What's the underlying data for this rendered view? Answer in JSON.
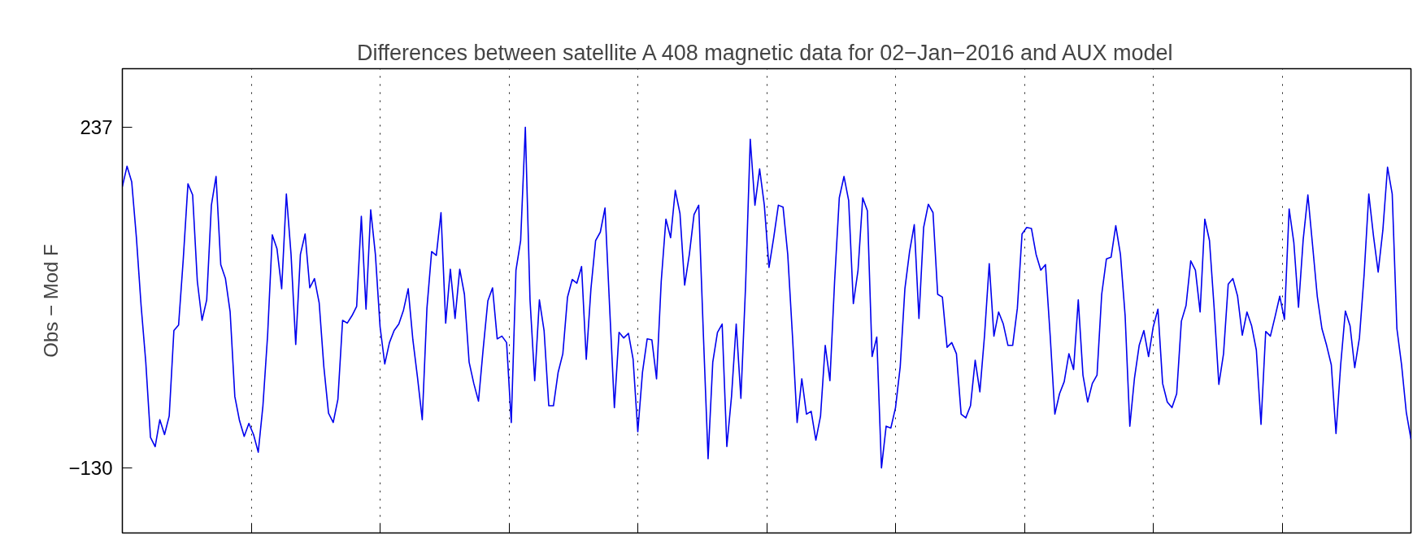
{
  "chart_data": {
    "type": "line",
    "title": "Differences between satellite A 408 magnetic data for 02−Jan−2016 and AUX model",
    "ylabel": "Obs − Mod F",
    "categories": [
      null,
      null,
      null,
      null,
      null,
      null,
      null,
      null,
      null,
      null,
      null,
      null,
      null,
      null,
      null,
      null,
      null,
      null,
      null,
      null,
      null,
      null,
      null,
      null,
      null,
      null,
      null,
      null,
      null,
      null,
      null,
      null,
      null,
      null,
      null,
      null,
      null,
      null,
      null,
      null,
      null,
      null,
      null,
      null,
      null,
      null,
      null,
      null,
      null,
      null,
      null,
      null,
      null,
      null,
      null,
      null,
      null,
      null,
      null,
      null,
      null,
      null,
      null,
      null,
      null,
      null,
      null,
      null,
      null,
      null,
      null,
      null,
      null,
      null,
      null,
      null,
      null,
      null,
      null,
      null,
      null,
      null,
      null,
      null,
      null,
      null,
      null,
      null,
      null,
      null,
      null,
      null,
      null,
      null,
      null,
      null,
      null,
      null,
      null,
      null,
      null,
      null,
      null,
      null,
      null,
      null,
      null,
      null,
      null,
      null,
      null,
      null,
      null,
      null,
      null,
      null,
      null,
      null,
      null,
      null,
      null,
      null,
      null,
      null,
      null,
      null,
      null,
      null,
      null,
      null,
      null,
      null,
      null,
      null,
      null,
      null,
      null,
      null,
      null,
      null,
      null,
      null,
      null,
      null,
      null,
      null,
      null,
      null,
      null,
      null,
      null,
      null,
      null,
      null,
      null,
      null,
      null,
      null,
      null,
      null,
      null,
      null,
      null,
      null,
      null,
      null,
      null,
      null,
      null,
      null,
      null,
      null,
      null,
      null,
      null,
      null,
      null,
      null,
      null,
      null,
      null,
      null,
      null,
      null,
      null,
      null,
      null,
      null,
      null,
      null,
      null,
      null,
      null,
      null,
      null,
      null,
      null,
      null,
      null,
      null,
      null,
      null,
      null,
      null,
      null,
      null,
      null,
      null,
      null,
      null,
      null,
      null,
      null,
      null,
      null,
      null,
      null,
      null,
      null,
      null,
      null,
      null,
      null,
      null,
      null,
      null,
      null,
      null,
      null,
      null,
      null,
      null,
      null,
      null,
      null,
      null,
      null,
      null,
      null,
      null,
      null,
      null,
      null,
      null,
      null,
      null,
      null,
      null,
      null,
      null,
      null,
      null,
      null,
      null,
      null,
      null,
      null,
      null,
      null,
      null,
      null,
      null,
      null,
      null,
      null,
      null,
      null,
      null,
      null,
      null,
      null,
      null,
      null,
      null,
      null,
      null
    ],
    "ylim": [
      -200,
      300
    ],
    "yticks": [
      {
        "value": -130,
        "label": "−130"
      },
      237
    ],
    "tick_labels": "y",
    "grid": "x",
    "line_style": "solid",
    "series": [
      {
        "color": "#0000ee",
        "values": [
          173,
          195,
          178,
          118,
          45,
          -16,
          -97,
          -107,
          -78,
          -94,
          -74,
          18,
          24,
          95,
          176,
          164,
          71,
          29,
          51,
          153,
          184,
          89,
          74,
          38,
          -53,
          -79,
          -96,
          -82,
          -94,
          -113,
          -63,
          13,
          121,
          106,
          63,
          165,
          100,
          3,
          100,
          122,
          64,
          74,
          48,
          -21,
          -71,
          -81,
          -56,
          29,
          26,
          34,
          44,
          141,
          41,
          148,
          100,
          22,
          -18,
          5,
          18,
          25,
          40,
          63,
          8,
          -33,
          -78,
          42,
          103,
          99,
          145,
          26,
          84,
          31,
          84,
          57,
          -16,
          -39,
          -58,
          -2,
          50,
          64,
          9,
          12,
          5,
          -81,
          83,
          115,
          237,
          51,
          -36,
          51,
          18,
          -63,
          -63,
          -27,
          -7,
          54,
          73,
          69,
          87,
          -13,
          63,
          115,
          124,
          150,
          42,
          -65,
          16,
          10,
          15,
          -13,
          -91,
          -27,
          9,
          8,
          -34,
          71,
          138,
          118,
          169,
          144,
          67,
          100,
          143,
          153,
          13,
          -120,
          -16,
          16,
          25,
          -107,
          -53,
          25,
          -55,
          66,
          224,
          153,
          192,
          153,
          86,
          118,
          153,
          151,
          100,
          13,
          -81,
          -34,
          -72,
          -69,
          -100,
          -74,
          2,
          -36,
          71,
          161,
          184,
          158,
          47,
          83,
          161,
          147,
          -10,
          11,
          -130,
          -85,
          -87,
          -65,
          -21,
          63,
          103,
          132,
          31,
          129,
          154,
          145,
          57,
          54,
          0,
          5,
          -7,
          -72,
          -76,
          -63,
          -14,
          -48,
          13,
          90,
          12,
          38,
          25,
          2,
          2,
          42,
          122,
          129,
          128,
          100,
          83,
          89,
          13,
          -72,
          -50,
          -37,
          -7,
          -24,
          51,
          -30,
          -59,
          -39,
          -30,
          57,
          95,
          97,
          131,
          100,
          34,
          -85,
          -33,
          2,
          18,
          -10,
          22,
          41,
          -39,
          -59,
          -65,
          -50,
          28,
          45,
          93,
          83,
          38,
          138,
          115,
          42,
          -40,
          -7,
          68,
          74,
          55,
          13,
          38,
          23,
          -3,
          -83,
          17,
          12,
          33,
          55,
          30,
          149,
          113,
          43,
          116,
          164,
          110,
          55,
          20,
          2,
          -19,
          -93,
          -19,
          39,
          23,
          -22,
          10,
          78,
          165,
          120,
          81,
          126,
          194,
          165,
          20,
          -19,
          -70,
          -99
        ]
      }
    ]
  }
}
